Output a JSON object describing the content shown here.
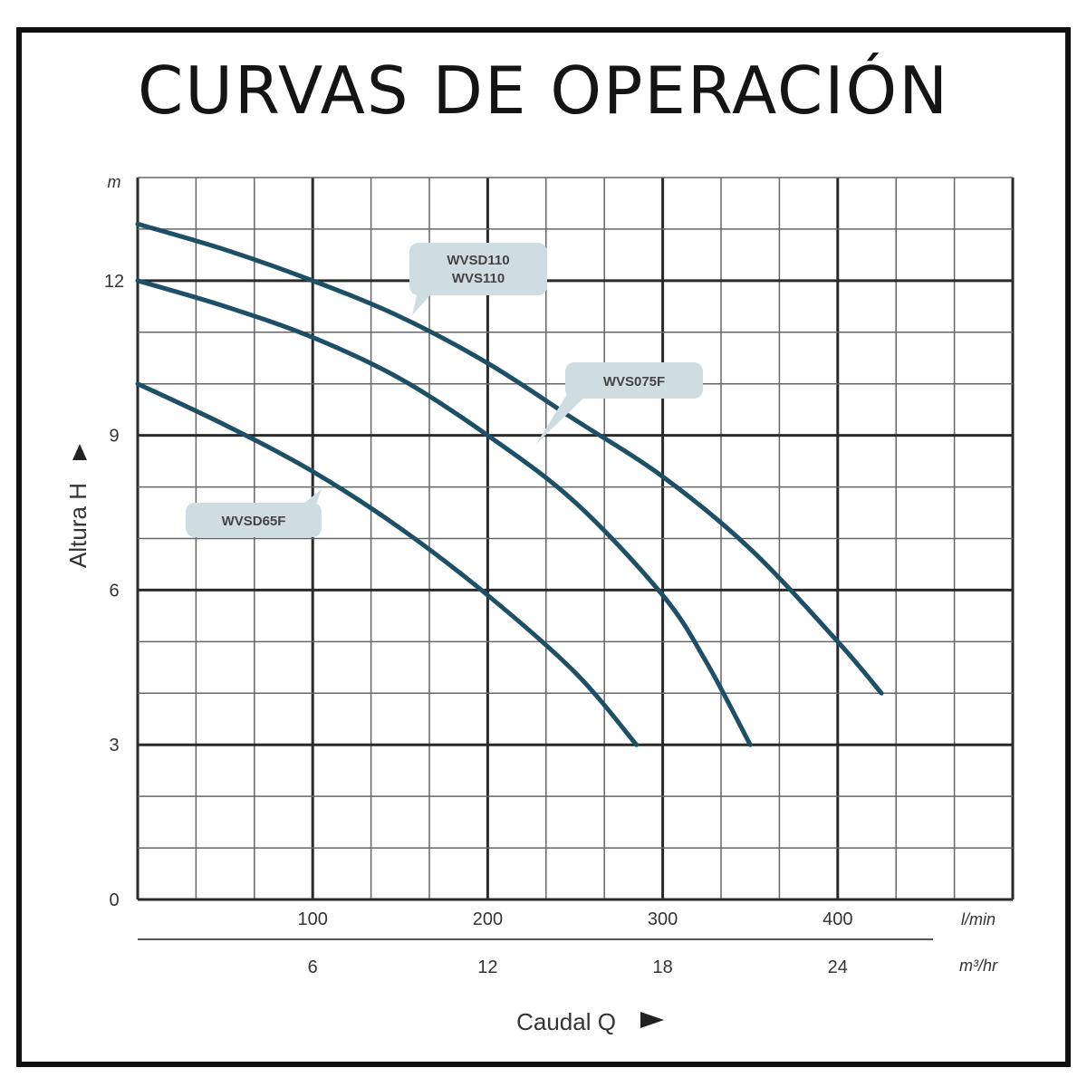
{
  "title": "CURVAS DE OPERACIÓN",
  "chart_data": {
    "type": "line",
    "title": "CURVAS DE OPERACIÓN",
    "ylabel": "Altura H",
    "xlabel": "Caudal Q",
    "y_unit": "m",
    "x_unit": "l/min",
    "x2_unit": "m³/hr",
    "xlim": [
      0,
      500
    ],
    "ylim": [
      0,
      14
    ],
    "y_ticks": [
      0,
      3,
      6,
      9,
      12
    ],
    "x_ticks": [
      100,
      200,
      300,
      400
    ],
    "x2_ticks": [
      6,
      12,
      18,
      24
    ],
    "grid": true,
    "series": [
      {
        "name": "WVSD110 WVS110",
        "x": [
          0,
          50,
          100,
          150,
          200,
          250,
          300,
          350,
          400,
          425
        ],
        "y": [
          13.1,
          12.6,
          12.0,
          11.3,
          10.4,
          9.3,
          8.2,
          6.8,
          5.0,
          4.0
        ]
      },
      {
        "name": "WVS075F",
        "x": [
          0,
          50,
          100,
          150,
          200,
          250,
          300,
          325,
          350
        ],
        "y": [
          12.0,
          11.5,
          10.9,
          10.1,
          9.0,
          7.7,
          5.9,
          4.6,
          3.0
        ]
      },
      {
        "name": "WVSD65F",
        "x": [
          0,
          50,
          100,
          150,
          200,
          250,
          285
        ],
        "y": [
          10.0,
          9.2,
          8.3,
          7.2,
          5.9,
          4.4,
          3.0
        ]
      }
    ]
  },
  "labels": {
    "wvsd110_line1": "WVSD110",
    "wvsd110_line2": "WVS110",
    "wvs075f": "WVS075F",
    "wvsd65f": "WVSD65F"
  },
  "colors": {
    "curve": "#1d4f66",
    "grid_major": "#2a2a2a",
    "grid_minor": "#666666",
    "label_bg": "#cfdde3"
  }
}
